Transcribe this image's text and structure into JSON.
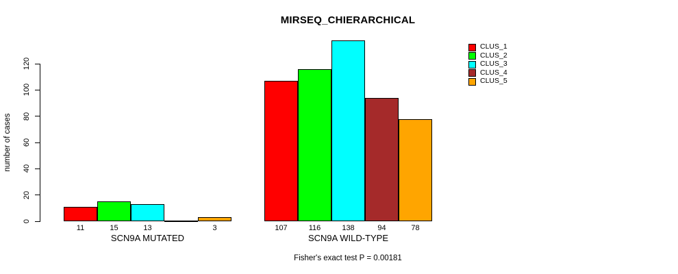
{
  "page": {
    "background": "#ffffff",
    "text_color": "#000000"
  },
  "chart_data": {
    "type": "bar",
    "title": "MIRSEQ_CHIERARCHICAL",
    "xlabel": "",
    "ylabel": "number of cases",
    "categories": [
      "SCN9A MUTATED",
      "SCN9A WILD-TYPE"
    ],
    "series": [
      {
        "name": "CLUS_1",
        "color": "#ff0000",
        "values": [
          11,
          107
        ]
      },
      {
        "name": "CLUS_2",
        "color": "#00ff00",
        "values": [
          15,
          116
        ]
      },
      {
        "name": "CLUS_3",
        "color": "#00ffff",
        "values": [
          13,
          138
        ]
      },
      {
        "name": "CLUS_4",
        "color": "#a52a2a",
        "values": [
          0,
          94
        ]
      },
      {
        "name": "CLUS_5",
        "color": "#ffa500",
        "values": [
          3,
          78
        ]
      }
    ],
    "bar_value_labels": {
      "show": true,
      "hide_zero": true
    },
    "yticks": [
      0,
      20,
      40,
      60,
      80,
      100,
      120
    ],
    "ylim": [
      0,
      140
    ],
    "grid": false,
    "legend": {
      "position": "top-right",
      "border": false,
      "entries": [
        "CLUS_1",
        "CLUS_2",
        "CLUS_3",
        "CLUS_4",
        "CLUS_5"
      ]
    },
    "annotation": "Fisher's exact test P = 0.00181"
  }
}
